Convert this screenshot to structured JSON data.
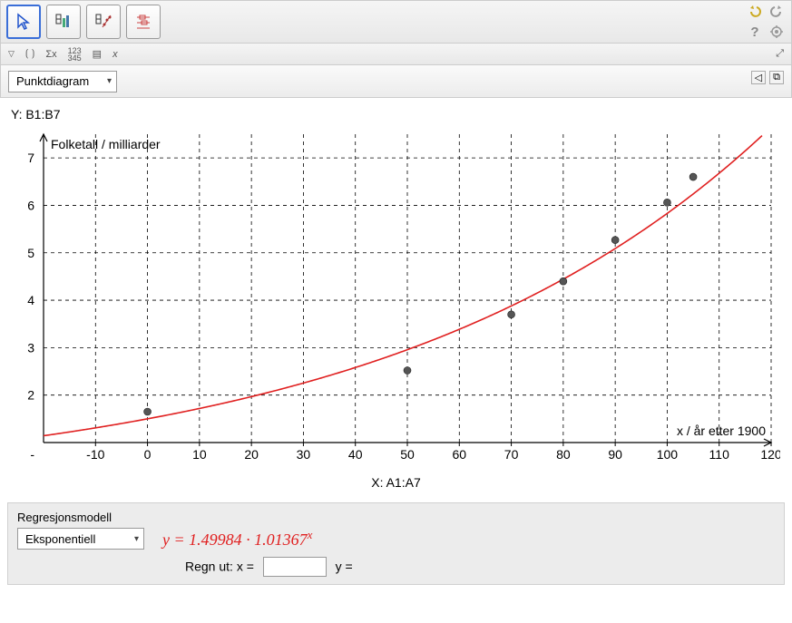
{
  "toolbar": {
    "icons_right": {
      "undo": "undo-icon",
      "redo": "redo-icon",
      "help": "?",
      "gear": "gear-icon"
    }
  },
  "toolbar2": {
    "sigma": "Σx",
    "nums": "123\n345",
    "x": "x"
  },
  "chart_type_dropdown": {
    "selected": "Punktdiagram"
  },
  "y_label": "Y:  B1:B7",
  "x_label": "X:  A1:A7",
  "chart": {
    "type": "scatter_with_curve",
    "title": "Folketall / milliarder",
    "x_axis_label": "x / år etter 1900",
    "xlim": [
      -20,
      120
    ],
    "ylim": [
      1,
      7.5
    ],
    "xtick_start": -10,
    "xtick_step": 10,
    "xtick_end": 120,
    "ytick_start": 2,
    "ytick_step": 1,
    "ytick_end": 7,
    "points": [
      {
        "x": 0,
        "y": 1.65
      },
      {
        "x": 50,
        "y": 2.52
      },
      {
        "x": 70,
        "y": 3.7
      },
      {
        "x": 80,
        "y": 4.4
      },
      {
        "x": 90,
        "y": 5.27
      },
      {
        "x": 100,
        "y": 6.06
      },
      {
        "x": 105,
        "y": 6.6
      }
    ],
    "point_color": "#555555",
    "point_radius": 4,
    "curve": {
      "a": 1.49984,
      "b": 1.01367,
      "color": "#e02020",
      "width": 1.6
    },
    "grid_color": "#000000",
    "grid_dash": "4,4",
    "axis_color": "#000000",
    "background": "#ffffff",
    "title_fontsize": 14,
    "tick_fontsize": 14
  },
  "regression": {
    "panel_title": "Regresjonsmodell",
    "dropdown_selected": "Eksponentiell",
    "equation_html": "y = 1.49984 · 1.01367",
    "equation_exp": "x",
    "calc_label": "Regn ut:  x =",
    "calc_y": "y ="
  }
}
